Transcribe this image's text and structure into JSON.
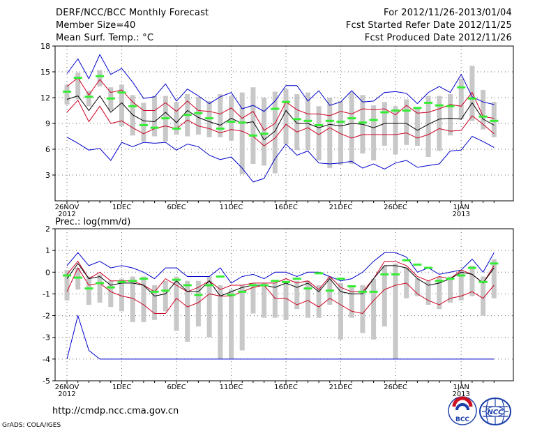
{
  "header": {
    "title": "DERF/NCC/BCC Monthly Forecast",
    "member_size": "Member Size=40",
    "variable": "Mean Surf. Temp.: °C",
    "forecast_period": "For 2012/11/26-2013/01/04",
    "start_date": "Fcst Started Refer Date 2012/11/25",
    "produced_date": "Fcst Produced Date 2012/11/26"
  },
  "footer": {
    "url": "http://cmdp.ncc.cma.gov.cn",
    "credit": "GrADS: COLA/IGES",
    "logo_left_text": "BCC",
    "logo_right_text": "NCC"
  },
  "colors": {
    "max_min": "#0000cc",
    "spread": "#cc0022",
    "mean": "#000000",
    "box": "#c8c8c8",
    "median": "#33ee33"
  },
  "chart_data": [
    {
      "type": "box",
      "title": "Mean Surf. Temp.: °C",
      "ylim": [
        0,
        18
      ],
      "yticks": [
        3,
        6,
        9,
        12,
        15,
        18
      ],
      "xlim": [
        0,
        40
      ],
      "grid": true,
      "x_tick_days": [
        0,
        5,
        10,
        15,
        20,
        25,
        30,
        36
      ],
      "x_tick_labels": [
        "26NOV",
        "1DEC",
        "6DEC",
        "11DEC",
        "16DEC",
        "21DEC",
        "26DEC",
        "1JAN"
      ],
      "x_year_labels": [
        {
          "day": 0,
          "label": "2012"
        },
        {
          "day": 36,
          "label": "2013"
        }
      ],
      "series": [
        {
          "name": "max",
          "values": [
            14.8,
            16.5,
            14.2,
            17,
            14.7,
            15.4,
            13.8,
            11.9,
            12.1,
            13.6,
            11.6,
            13,
            12.2,
            11.3,
            12.1,
            12.6,
            10.7,
            11.1,
            10.4,
            11.6,
            13.4,
            13.4,
            11.6,
            12.8,
            11.1,
            11.5,
            12.8,
            11.5,
            11.6,
            12.6,
            12.7,
            12.5,
            11.3,
            12.6,
            13.3,
            12.6,
            14.7,
            12.1,
            11.5,
            11.2
          ]
        },
        {
          "name": "upper",
          "values": [
            13.3,
            14.3,
            12.3,
            14.1,
            12.6,
            12.9,
            11.5,
            10.5,
            10.5,
            11.4,
            10.4,
            11.6,
            10.5,
            10.4,
            10.1,
            10.8,
            9.6,
            10.4,
            8.2,
            9,
            11.5,
            10.6,
            10.1,
            10.1,
            9.9,
            10.4,
            10.1,
            10.7,
            10.6,
            10.7,
            10,
            11.1,
            10.2,
            10.3,
            10.7,
            11.2,
            11,
            12.6,
            9.8,
            9.6
          ]
        },
        {
          "name": "mean",
          "values": [
            11.8,
            12.2,
            10.5,
            12.2,
            10.3,
            11.4,
            10,
            9.3,
            9.2,
            10.3,
            9.1,
            10.5,
            9.7,
            9.2,
            8.8,
            9.6,
            9,
            9.2,
            7.1,
            8.1,
            10.5,
            9,
            9,
            8.5,
            8.9,
            8.7,
            9,
            8.9,
            8.5,
            9,
            9,
            9,
            8.2,
            8.9,
            9.5,
            9.6,
            9.5,
            11.4,
            9.5,
            8.8
          ]
        },
        {
          "name": "lower",
          "values": [
            10.3,
            11.7,
            9.2,
            11,
            9,
            9.3,
            8.5,
            7.8,
            8.4,
            8.7,
            8.4,
            9.4,
            8.7,
            8.4,
            7.9,
            8.3,
            8.1,
            7.5,
            6.4,
            7.3,
            8.9,
            8,
            8.5,
            7.7,
            8.5,
            7.8,
            7.3,
            7.7,
            7.7,
            7.7,
            7.7,
            7.9,
            7.3,
            7.7,
            8.4,
            8.1,
            8.2,
            9.9,
            8.9,
            7.8
          ]
        },
        {
          "name": "min",
          "values": [
            7.4,
            6.7,
            5.9,
            6.1,
            4.7,
            6.8,
            6.3,
            6.8,
            6.7,
            6.8,
            5.9,
            6.6,
            6.3,
            5.3,
            4.8,
            5.1,
            3.8,
            2.2,
            2.6,
            4.9,
            6.6,
            5.3,
            5.8,
            4.4,
            4.3,
            4.4,
            4.6,
            3.8,
            4.3,
            3.7,
            4.4,
            4.7,
            3.9,
            4.1,
            4.3,
            5.8,
            5.9,
            7.5,
            6.9,
            6.2
          ]
        },
        {
          "name": "box_high",
          "values": [
            13.5,
            14.9,
            12.8,
            15.2,
            13.2,
            13.5,
            12.3,
            11.4,
            12.2,
            12.2,
            11.5,
            12.4,
            12.1,
            11.6,
            12.4,
            12.2,
            12.6,
            13.2,
            12,
            12.7,
            13,
            12.4,
            12.6,
            11,
            12,
            11.6,
            12.6,
            12.3,
            11.1,
            11.5,
            11,
            11.8,
            10.7,
            12.2,
            12.2,
            12.4,
            14.2,
            15.7,
            12.9,
            11.5
          ]
        },
        {
          "name": "box_low",
          "values": [
            11.2,
            11.8,
            11,
            13.3,
            10.5,
            8.7,
            7.6,
            6.9,
            7.5,
            6.9,
            7.7,
            7.5,
            7.7,
            7.4,
            7.4,
            7,
            3.1,
            4.3,
            4.1,
            3.2,
            6.6,
            5.9,
            5.9,
            4.7,
            3.8,
            4.2,
            4.3,
            5.5,
            4.7,
            6.4,
            5.4,
            6.5,
            6.4,
            5.1,
            5.8,
            7.6,
            9.5,
            9.3,
            8.3,
            7.4
          ]
        },
        {
          "name": "median",
          "values": [
            12.7,
            14.3,
            12.1,
            14.5,
            11.9,
            12.6,
            11,
            8.8,
            8.5,
            9.6,
            8.4,
            10,
            10.2,
            9.6,
            8.4,
            9.2,
            9.1,
            7.6,
            7.8,
            10.7,
            11.5,
            9.5,
            9.3,
            8.8,
            9.3,
            9.2,
            9.6,
            9.1,
            9.4,
            10.3,
            10.5,
            10.5,
            10.8,
            11.4,
            11.1,
            11,
            13.2,
            11.9,
            9.8,
            9.3
          ]
        }
      ]
    },
    {
      "type": "box",
      "title": "Prec.: log(mm/d)",
      "ylim": [
        -5,
        2
      ],
      "yticks": [
        -5,
        -4,
        -3,
        -2,
        -1,
        0,
        1,
        2
      ],
      "xlim": [
        0,
        40
      ],
      "grid": true,
      "x_tick_days": [
        0,
        5,
        10,
        15,
        20,
        25,
        30,
        36
      ],
      "x_tick_labels": [
        "26NOV",
        "1DEC",
        "6DEC",
        "11DEC",
        "16DEC",
        "21DEC",
        "26DEC",
        "1JAN"
      ],
      "x_year_labels": [
        {
          "day": 0,
          "label": "2012"
        },
        {
          "day": 36,
          "label": "2013"
        }
      ],
      "series": [
        {
          "name": "max",
          "values": [
            0.3,
            0.9,
            0.3,
            0.5,
            0.2,
            0.3,
            0.2,
            0,
            -0.3,
            0.2,
            0.2,
            -0.2,
            -0.2,
            -0.2,
            0.2,
            -0.5,
            -0.2,
            -0.1,
            -0.3,
            0,
            0,
            -0.2,
            0,
            0,
            -0.2,
            -0.4,
            -0.3,
            0,
            0.5,
            0.9,
            0.9,
            0.7,
            0,
            0.2,
            -0.1,
            0,
            0.1,
            0.6,
            0,
            0.9
          ]
        },
        {
          "name": "upper",
          "values": [
            -0.1,
            0.5,
            -0.3,
            0,
            -0.4,
            -0.4,
            -0.4,
            -0.6,
            -0.9,
            -0.3,
            -0.6,
            -0.9,
            -0.7,
            -0.4,
            -0.8,
            -0.6,
            -0.6,
            -0.5,
            -0.5,
            -0.5,
            -0.3,
            -0.5,
            -0.4,
            -0.8,
            -0.2,
            -0.7,
            -0.9,
            -0.9,
            -0.3,
            0.5,
            0.5,
            0.3,
            -0.2,
            -0.4,
            -0.2,
            -0.3,
            0.1,
            -0.1,
            -0.5,
            0.3
          ]
        },
        {
          "name": "mean",
          "values": [
            -0.3,
            0.4,
            -0.3,
            -0.2,
            -0.6,
            -0.5,
            -0.5,
            -0.6,
            -1.1,
            -1,
            -0.4,
            -0.9,
            -0.9,
            -0.4,
            -1.1,
            -0.9,
            -0.7,
            -0.6,
            -0.6,
            -0.7,
            -0.5,
            -0.7,
            -0.5,
            -0.9,
            -0.3,
            -0.9,
            -1,
            -1,
            -0.3,
            0.3,
            0.3,
            0.2,
            -0.3,
            -0.6,
            -0.5,
            -0.3,
            0,
            -0.1,
            -0.5,
            0.2
          ]
        },
        {
          "name": "lower",
          "values": [
            -0.9,
            0.2,
            -0.6,
            -0.5,
            -0.9,
            -1.1,
            -1.2,
            -1.5,
            -1.9,
            -1.9,
            -1.2,
            -1.6,
            -1.4,
            -1,
            -1.1,
            -1.1,
            -0.9,
            -0.7,
            -0.6,
            -1.2,
            -1.2,
            -1.5,
            -1.3,
            -1.6,
            -1.2,
            -1.5,
            -1.8,
            -1.9,
            -1.3,
            -0.8,
            -0.6,
            -0.5,
            -1,
            -1.3,
            -1.5,
            -1.2,
            -1.1,
            -0.9,
            -1.2,
            -0.6
          ]
        },
        {
          "name": "min",
          "values": [
            -4,
            -2,
            -3.6,
            -4,
            -4,
            -4,
            -4,
            -4,
            -4,
            -4,
            -4,
            -4,
            -4,
            -4,
            -4,
            -4,
            -4,
            -4,
            -4,
            -4,
            -4,
            -4,
            -4,
            -4,
            -4,
            -4,
            -4,
            -4,
            -4,
            -4,
            -4,
            -4,
            -4,
            -4,
            -4,
            -4,
            -4,
            -4,
            -4,
            -4
          ]
        },
        {
          "name": "box_high",
          "values": [
            0.1,
            0.2,
            -0.2,
            -0.1,
            -0.4,
            -0.3,
            -0.2,
            -0.2,
            -0.6,
            -0.4,
            -0.2,
            -0.4,
            -0.4,
            -0.2,
            -0.6,
            -0.8,
            -0.6,
            -0.5,
            -0.5,
            -0.5,
            -0.4,
            -0.4,
            -0.4,
            -0.6,
            -0.2,
            -0.5,
            -0.6,
            -0.6,
            -0.3,
            0.3,
            0.4,
            0.2,
            -0.3,
            -0.4,
            -0.2,
            -0.2,
            0.1,
            0.3,
            -0.2,
            0.6
          ]
        },
        {
          "name": "box_low",
          "values": [
            -1.3,
            -0.8,
            -1.5,
            -1.4,
            -1.6,
            -1.8,
            -2.3,
            -2.3,
            -2.2,
            -1.8,
            -2.7,
            -3.2,
            -2.5,
            -3,
            -4,
            -4,
            -3.6,
            -1.9,
            -2.1,
            -2.1,
            -2.2,
            -1.7,
            -2.1,
            -2.1,
            -1.5,
            -3.1,
            -2.1,
            -2.8,
            -3.1,
            -2.5,
            -4,
            -1.2,
            -1.1,
            -1.5,
            -1.7,
            -1.4,
            -1.3,
            -1.1,
            -2,
            -1.2
          ]
        },
        {
          "name": "median",
          "values": [
            -0.15,
            -0.25,
            -0.75,
            -0.5,
            -0.7,
            -0.45,
            -0.4,
            -0.3,
            -0.9,
            -0.85,
            -0.35,
            -0.6,
            -1.05,
            -0.6,
            -0.2,
            -1.05,
            -0.9,
            -0.6,
            -0.6,
            -0.4,
            -0.45,
            -0.3,
            -0.75,
            -0.05,
            -0.85,
            -0.3,
            -0.65,
            -0.9,
            -0.9,
            -0.1,
            -0.1,
            0.55,
            0.35,
            0.2,
            -0.4,
            -0.3,
            -0.15,
            0.2,
            -0.45,
            0.4
          ]
        }
      ]
    }
  ]
}
